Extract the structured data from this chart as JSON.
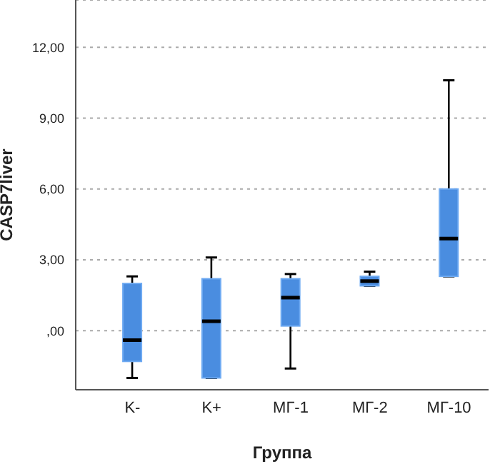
{
  "chart_data": {
    "type": "box",
    "xlabel": "Группа",
    "ylabel": "CASP7liver",
    "categories": [
      "K-",
      "K+",
      "МГ-1",
      "МГ-2",
      "МГ-10"
    ],
    "boxes": [
      {
        "low": -2.0,
        "q1": -1.3,
        "median": -0.4,
        "q3": 2.0,
        "high": 2.3
      },
      {
        "low": -2.0,
        "q1": -2.0,
        "median": 0.4,
        "q3": 2.2,
        "high": 3.1
      },
      {
        "low": -1.6,
        "q1": 0.2,
        "median": 1.4,
        "q3": 2.2,
        "high": 2.4
      },
      {
        "low": 1.9,
        "q1": 1.9,
        "median": 2.1,
        "q3": 2.3,
        "high": 2.5
      },
      {
        "low": 2.3,
        "q1": 2.3,
        "median": 3.9,
        "q3": 6.0,
        "high": 10.6
      }
    ],
    "color": "#4a8de0",
    "ylim": [
      -2.5,
      14
    ],
    "yticks": [
      {
        "value": 0,
        "label": ",00"
      },
      {
        "value": 3,
        "label": "3,00"
      },
      {
        "value": 6,
        "label": "6,00"
      },
      {
        "value": 9,
        "label": "9,00"
      },
      {
        "value": 12,
        "label": "12,00"
      }
    ],
    "grid": "y"
  }
}
